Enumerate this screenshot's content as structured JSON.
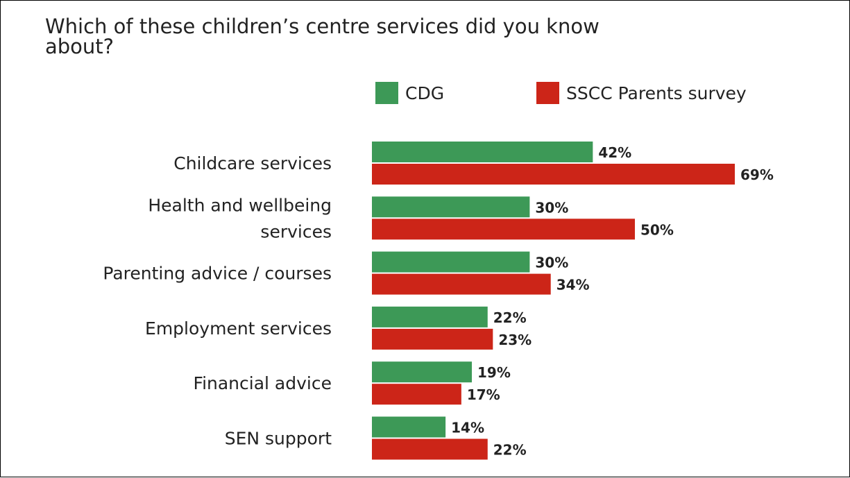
{
  "chart_data": {
    "type": "bar",
    "orientation": "horizontal",
    "title": "Which of these children’s centre services did you know about?",
    "title_lines": [
      "Which of these children’s centre services did you know",
      "about?"
    ],
    "categories": [
      "Childcare services",
      "Health and wellbeing services",
      "Parenting advice / courses",
      "Employment services",
      "Financial advice",
      "SEN support"
    ],
    "category_lines": [
      [
        "Childcare services"
      ],
      [
        "Health and wellbeing",
        "services"
      ],
      [
        "Parenting advice / courses"
      ],
      [
        "Employment services"
      ],
      [
        "Financial advice"
      ],
      [
        "SEN support"
      ]
    ],
    "series": [
      {
        "name": "CDG",
        "color": "#3d9957",
        "values": [
          42,
          30,
          30,
          22,
          19,
          14
        ],
        "labels": [
          "42%",
          "30%",
          "30%",
          "22%",
          "19%",
          "14%"
        ]
      },
      {
        "name": "SSCC Parents survey",
        "color": "#cc2518",
        "values": [
          69,
          50,
          34,
          23,
          17,
          22
        ],
        "labels": [
          "69%",
          "50%",
          "34%",
          "23%",
          "17%",
          "22%"
        ]
      }
    ],
    "unit": "%",
    "xlim": [
      0,
      69
    ],
    "grid": false,
    "legend_position": "top"
  }
}
